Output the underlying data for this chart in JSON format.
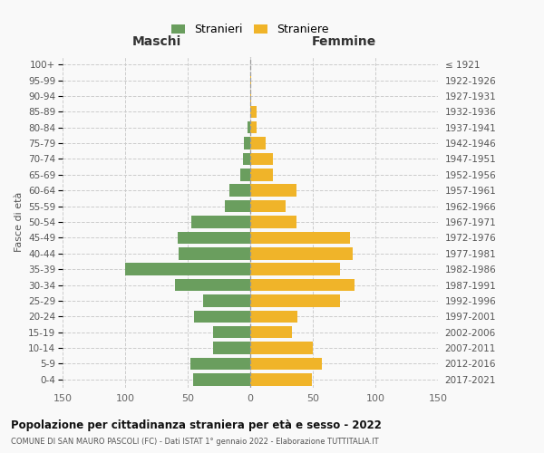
{
  "age_groups": [
    "0-4",
    "5-9",
    "10-14",
    "15-19",
    "20-24",
    "25-29",
    "30-34",
    "35-39",
    "40-44",
    "45-49",
    "50-54",
    "55-59",
    "60-64",
    "65-69",
    "70-74",
    "75-79",
    "80-84",
    "85-89",
    "90-94",
    "95-99",
    "100+"
  ],
  "birth_years": [
    "2017-2021",
    "2012-2016",
    "2007-2011",
    "2002-2006",
    "1997-2001",
    "1992-1996",
    "1987-1991",
    "1982-1986",
    "1977-1981",
    "1972-1976",
    "1967-1971",
    "1962-1966",
    "1957-1961",
    "1952-1956",
    "1947-1951",
    "1942-1946",
    "1937-1941",
    "1932-1936",
    "1927-1931",
    "1922-1926",
    "≤ 1921"
  ],
  "maschi": [
    46,
    48,
    30,
    30,
    45,
    38,
    60,
    100,
    57,
    58,
    47,
    20,
    17,
    8,
    6,
    5,
    2,
    0,
    0,
    0,
    0
  ],
  "femmine": [
    49,
    57,
    50,
    33,
    38,
    72,
    83,
    72,
    82,
    80,
    37,
    28,
    37,
    18,
    18,
    12,
    5,
    5,
    1,
    1,
    0
  ],
  "male_color": "#6a9e5e",
  "female_color": "#f0b429",
  "background_color": "#f9f9f9",
  "grid_color": "#cccccc",
  "title": "Popolazione per cittadinanza straniera per età e sesso - 2022",
  "subtitle": "COMUNE DI SAN MAURO PASCOLI (FC) - Dati ISTAT 1° gennaio 2022 - Elaborazione TUTTITALIA.IT",
  "legend_stranieri": "Stranieri",
  "legend_straniere": "Straniere",
  "header_left": "Maschi",
  "header_right": "Femmine",
  "ylabel_left": "Fasce di età",
  "xlim": 150,
  "xticks": [
    -150,
    -100,
    -50,
    0,
    50,
    100,
    150
  ]
}
